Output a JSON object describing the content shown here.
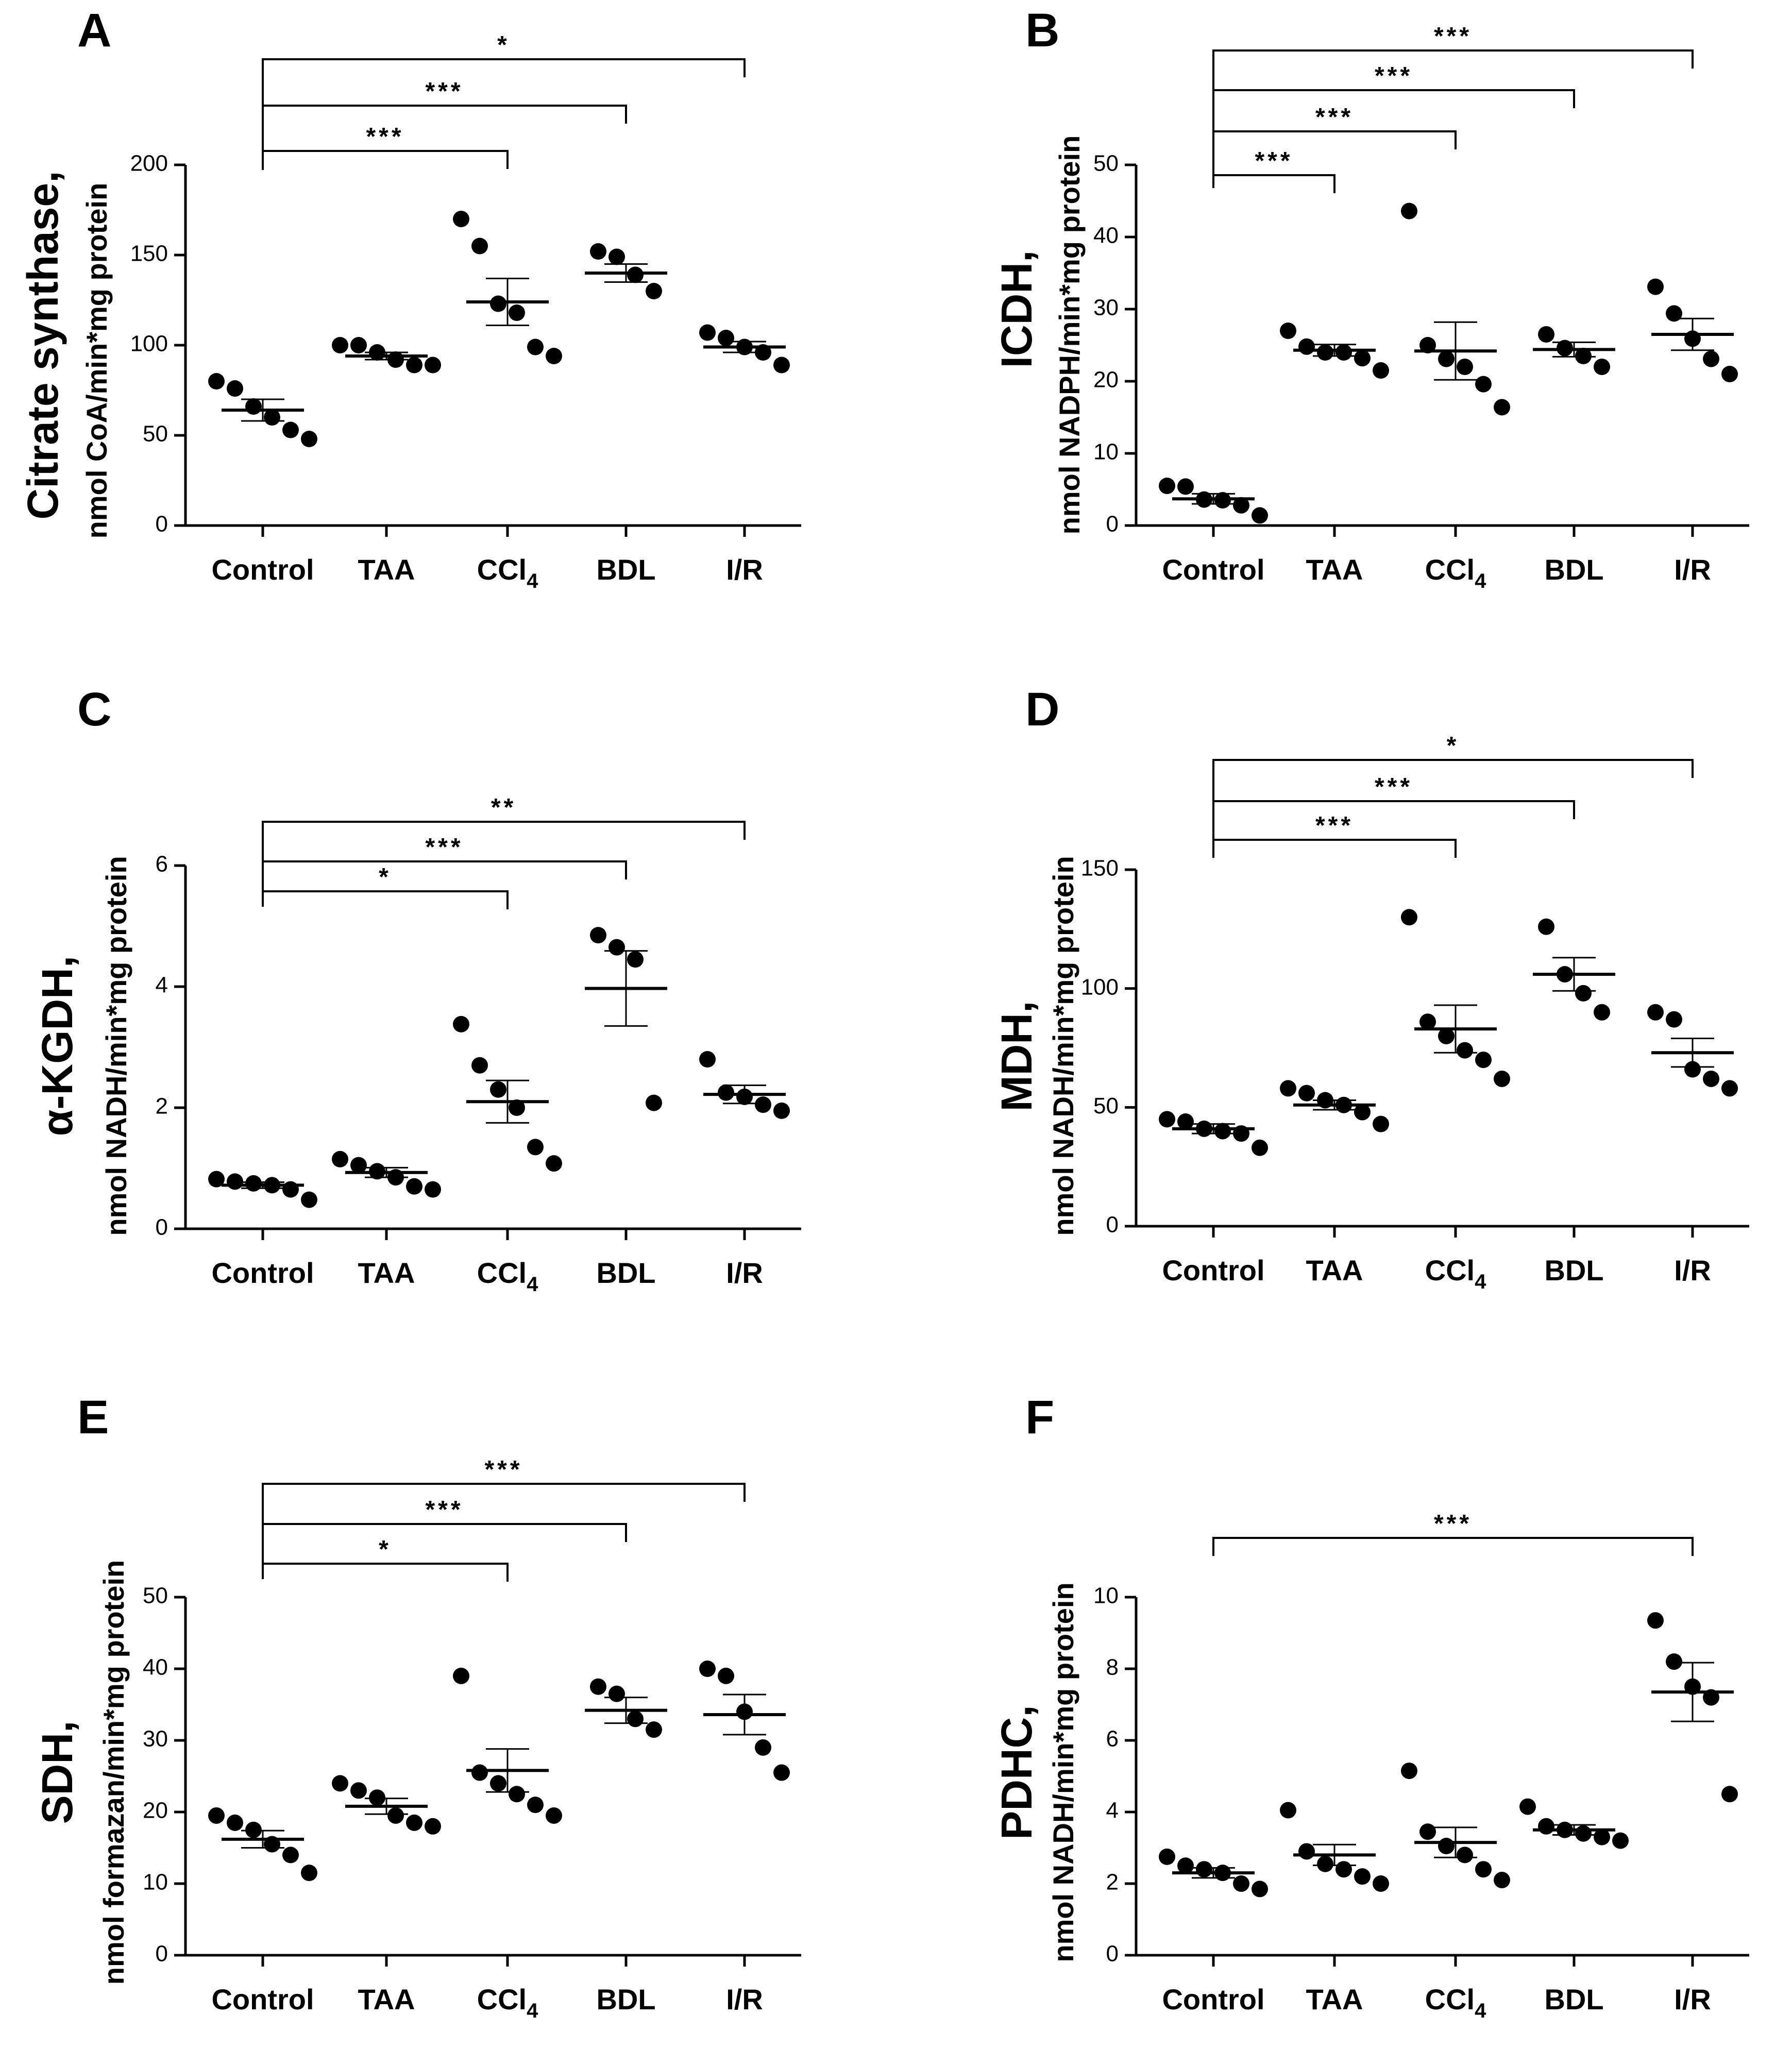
{
  "figure": {
    "panels": [
      {
        "letter": "A",
        "title_bold": "Citrate synthase,",
        "unit_label": "nmol CoA/min*mg protein",
        "yticks": [
          "0",
          "50",
          "100",
          "150",
          "200"
        ],
        "categories": [
          "Control",
          "TAA",
          "CCl",
          "BDL",
          "I/R"
        ],
        "subscript_category_index": 2,
        "subscript_text": "4",
        "brackets": [
          {
            "to": 2,
            "label": "***"
          },
          {
            "to": 3,
            "label": "***"
          },
          {
            "to": 4,
            "label": "*"
          }
        ]
      },
      {
        "letter": "B",
        "title_bold": "ICDH,",
        "unit_label": "nmol NADPH/min*mg protein",
        "yticks": [
          "0",
          "10",
          "20",
          "30",
          "40",
          "50"
        ],
        "categories": [
          "Control",
          "TAA",
          "CCl",
          "BDL",
          "I/R"
        ],
        "subscript_category_index": 2,
        "subscript_text": "4",
        "brackets": [
          {
            "to": 1,
            "label": "***"
          },
          {
            "to": 2,
            "label": "***"
          },
          {
            "to": 3,
            "label": "***"
          },
          {
            "to": 4,
            "label": "***"
          }
        ]
      },
      {
        "letter": "C",
        "title_bold": "α-KGDH,",
        "unit_label": "nmol NADH/min*mg protein",
        "yticks": [
          "0",
          "2",
          "4",
          "6"
        ],
        "categories": [
          "Control",
          "TAA",
          "CCl",
          "BDL",
          "I/R"
        ],
        "subscript_category_index": 2,
        "subscript_text": "4",
        "brackets": [
          {
            "to": 2,
            "label": "*"
          },
          {
            "to": 3,
            "label": "***"
          },
          {
            "to": 4,
            "label": "**"
          }
        ]
      },
      {
        "letter": "D",
        "title_bold": "MDH,",
        "unit_label": "nmol NADH/min*mg protein",
        "yticks": [
          "0",
          "50",
          "100",
          "150"
        ],
        "categories": [
          "Control",
          "TAA",
          "CCl",
          "BDL",
          "I/R"
        ],
        "subscript_category_index": 2,
        "subscript_text": "4",
        "brackets": [
          {
            "to": 2,
            "label": "***"
          },
          {
            "to": 3,
            "label": "***"
          },
          {
            "to": 4,
            "label": "*"
          }
        ]
      },
      {
        "letter": "E",
        "title_bold": "SDH,",
        "unit_label": "nmol formazan/min*mg protein",
        "yticks": [
          "0",
          "10",
          "20",
          "30",
          "40",
          "50"
        ],
        "categories": [
          "Control",
          "TAA",
          "CCl",
          "BDL",
          "I/R"
        ],
        "subscript_category_index": 2,
        "subscript_text": "4",
        "brackets": [
          {
            "to": 2,
            "label": "*"
          },
          {
            "to": 3,
            "label": "***"
          },
          {
            "to": 4,
            "label": "***"
          }
        ]
      },
      {
        "letter": "F",
        "title_bold": "PDHC,",
        "unit_label": "nmol NADH/min*mg protein",
        "yticks": [
          "0",
          "2",
          "4",
          "6",
          "8",
          "10"
        ],
        "categories": [
          "Control",
          "TAA",
          "CCl",
          "BDL",
          "I/R"
        ],
        "subscript_category_index": 2,
        "subscript_text": "4",
        "brackets": [
          {
            "to": 4,
            "label": "***"
          }
        ]
      }
    ]
  },
  "chart_data": [
    {
      "type": "scatter",
      "panel": "A",
      "ylabel": "Citrate synthase, nmol CoA/min*mg protein",
      "ylim": [
        0,
        200
      ],
      "categories": [
        "Control",
        "TAA",
        "CCl4",
        "BDL",
        "I/R"
      ],
      "points": [
        [
          80,
          76,
          66,
          60,
          53,
          48
        ],
        [
          100,
          100,
          96,
          92,
          89,
          89
        ],
        [
          170,
          155,
          123,
          118,
          99,
          94
        ],
        [
          152,
          149,
          139,
          130
        ],
        [
          107,
          104,
          99,
          96,
          89
        ]
      ],
      "mean": [
        64,
        94,
        124,
        140,
        99
      ],
      "sem": [
        6,
        2,
        13,
        5,
        3
      ]
    },
    {
      "type": "scatter",
      "panel": "B",
      "ylabel": "ICDH, nmol NADPH/min*mg protein",
      "ylim": [
        0,
        50
      ],
      "categories": [
        "Control",
        "TAA",
        "CCl4",
        "BDL",
        "I/R"
      ],
      "points": [
        [
          5.5,
          5.4,
          3.6,
          3.5,
          2.8,
          1.4
        ],
        [
          27.0,
          24.8,
          24.0,
          24.0,
          23.2,
          21.5
        ],
        [
          43.6,
          25.0,
          23.1,
          22.0,
          19.6,
          16.4
        ],
        [
          26.5,
          24.6,
          23.5,
          22.0
        ],
        [
          33.1,
          29.4,
          25.9,
          23.1,
          21.0
        ]
      ],
      "mean": [
        3.7,
        24.3,
        24.2,
        24.4,
        26.5
      ],
      "sem": [
        0.7,
        0.8,
        4.0,
        1.0,
        2.2
      ]
    },
    {
      "type": "scatter",
      "panel": "C",
      "ylabel": "α-KGDH, nmol NADH/min*mg protein",
      "ylim": [
        0,
        6
      ],
      "categories": [
        "Control",
        "TAA",
        "CCl4",
        "BDL",
        "I/R"
      ],
      "points": [
        [
          0.82,
          0.78,
          0.75,
          0.72,
          0.65,
          0.48
        ],
        [
          1.15,
          1.05,
          0.95,
          0.85,
          0.7,
          0.65
        ],
        [
          3.38,
          2.7,
          2.3,
          2.0,
          1.35,
          1.08
        ],
        [
          4.85,
          4.65,
          4.45,
          2.08
        ],
        [
          2.8,
          2.25,
          2.18,
          2.05,
          1.95
        ]
      ],
      "mean": [
        0.72,
        0.93,
        2.1,
        3.97,
        2.22
      ],
      "sem": [
        0.05,
        0.08,
        0.35,
        0.62,
        0.15
      ]
    },
    {
      "type": "scatter",
      "panel": "D",
      "ylabel": "MDH, nmol NADH/min*mg protein",
      "ylim": [
        0,
        150
      ],
      "categories": [
        "Control",
        "TAA",
        "CCl4",
        "BDL",
        "I/R"
      ],
      "points": [
        [
          45,
          44,
          41,
          40,
          39,
          33
        ],
        [
          58,
          56,
          53,
          51,
          48,
          43
        ],
        [
          130,
          86,
          80,
          74,
          70,
          62
        ],
        [
          126,
          106,
          98,
          90
        ],
        [
          90,
          87,
          66,
          62,
          58
        ]
      ],
      "mean": [
        41,
        51,
        83,
        106,
        73
      ],
      "sem": [
        2,
        2,
        10,
        7,
        6
      ]
    },
    {
      "type": "scatter",
      "panel": "E",
      "ylabel": "SDH, nmol formazan/min*mg protein",
      "ylim": [
        0,
        50
      ],
      "categories": [
        "Control",
        "TAA",
        "CCl4",
        "BDL",
        "I/R"
      ],
      "points": [
        [
          19.5,
          18.5,
          17.5,
          15.5,
          14.0,
          11.5
        ],
        [
          24.0,
          23.0,
          22.0,
          19.5,
          18.5,
          18.0
        ],
        [
          39.0,
          25.5,
          24.0,
          22.5,
          21.0,
          19.5
        ],
        [
          37.5,
          36.5,
          33.0,
          31.5
        ],
        [
          40.0,
          39.0,
          34.0,
          29.0,
          25.5
        ]
      ],
      "mean": [
        16.2,
        20.8,
        25.8,
        34.2,
        33.6
      ],
      "sem": [
        1.2,
        1.1,
        3.0,
        1.8,
        2.8
      ]
    },
    {
      "type": "scatter",
      "panel": "F",
      "ylabel": "PDHC, nmol NADH/min*mg protein",
      "ylim": [
        0,
        10
      ],
      "categories": [
        "Control",
        "TAA",
        "CCl4",
        "BDL",
        "I/R"
      ],
      "points": [
        [
          2.75,
          2.5,
          2.4,
          2.3,
          2.0,
          1.85
        ],
        [
          4.05,
          2.9,
          2.55,
          2.4,
          2.2,
          2.0
        ],
        [
          5.15,
          3.45,
          3.05,
          2.8,
          2.4,
          2.1
        ],
        [
          4.15,
          3.6,
          3.5,
          3.4,
          3.3,
          3.2
        ],
        [
          9.35,
          8.2,
          7.5,
          7.2,
          4.5
        ]
      ],
      "mean": [
        2.3,
        2.8,
        3.15,
        3.5,
        7.35
      ],
      "sem": [
        0.14,
        0.29,
        0.42,
        0.14,
        0.82
      ]
    }
  ]
}
